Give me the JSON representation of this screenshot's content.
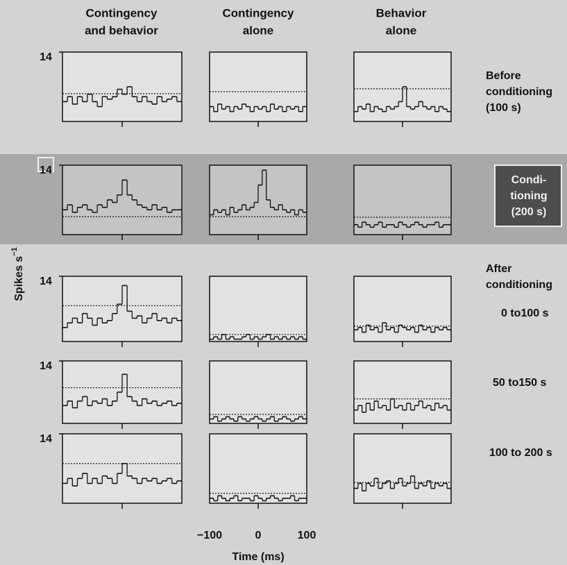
{
  "chart_data": {
    "type": "histogram-grid",
    "columns": [
      [
        "Contingency",
        "and behavior"
      ],
      [
        "Contingency",
        "alone"
      ],
      [
        "Behavior",
        "alone"
      ]
    ],
    "y_label": "Spikes s",
    "y_label_exponent": "−1",
    "x_label": "Time (ms)",
    "xlim": [
      -100,
      100
    ],
    "xticks": [
      {
        "value": -100,
        "label": "−100"
      },
      0,
      100
    ],
    "ylim": [
      0,
      14
    ],
    "yticks": [
      14
    ],
    "after_label": [
      "After",
      "conditioning"
    ],
    "rows": [
      {
        "label": [
          "Before",
          "conditioning",
          "(100 s)"
        ],
        "panels": [
          {
            "threshold": 5.6,
            "values": [
              4,
              5,
              3.5,
              5,
              4,
              5.5,
              4,
              3,
              5,
              4.5,
              5,
              6.5,
              5.5,
              7,
              5,
              4,
              5,
              4,
              3.5,
              5,
              4,
              4.5,
              5,
              4
            ]
          },
          {
            "threshold": 6,
            "values": [
              3,
              2,
              3.5,
              2.5,
              3,
              2,
              3,
              2.5,
              3.5,
              3,
              2,
              3,
              2.5,
              3,
              2,
              3.5,
              2.5,
              3,
              2,
              3,
              2.5,
              3,
              2,
              3
            ]
          },
          {
            "threshold": 6.6,
            "values": [
              2,
              3,
              2.5,
              3.5,
              2,
              3,
              2.5,
              2,
              3,
              2.5,
              3,
              4,
              7,
              3,
              2.5,
              3,
              4,
              3,
              2.5,
              3,
              2,
              3,
              2.5,
              2
            ]
          }
        ]
      },
      {
        "label": [
          "Condi-",
          "tioning",
          "(200 s)"
        ],
        "panels": [
          {
            "threshold": 3.6,
            "values": [
              5,
              6,
              4.5,
              5.5,
              6,
              5,
              4.5,
              6,
              5.5,
              7,
              6.5,
              8,
              11,
              8,
              7,
              6,
              5.5,
              5,
              6,
              5,
              5.5,
              4.5,
              5,
              5
            ]
          },
          {
            "threshold": 3.6,
            "values": [
              4,
              5,
              4.5,
              5,
              4,
              5.5,
              4.5,
              5,
              6,
              5,
              5.5,
              6.5,
              10,
              13,
              7,
              5.5,
              5,
              6,
              5,
              4.5,
              5,
              4,
              5,
              4.5
            ]
          },
          {
            "threshold": 3.5,
            "values": [
              2,
              1.5,
              2.5,
              2,
              1.5,
              2,
              2.5,
              1.5,
              2,
              2,
              1.5,
              2.5,
              2,
              1.5,
              2,
              2.5,
              2,
              1.5,
              2,
              2,
              2.5,
              1.5,
              2,
              2
            ]
          }
        ]
      },
      {
        "label": [
          "0 to100 s"
        ],
        "panels": [
          {
            "threshold": 7.7,
            "values": [
              3,
              4,
              5,
              4,
              6,
              5,
              3.5,
              5,
              4,
              4.5,
              6,
              8,
              12,
              6.5,
              5,
              5.5,
              4,
              5,
              6,
              4.5,
              5,
              4,
              5,
              4.5
            ]
          },
          {
            "threshold": 1.5,
            "values": [
              0.5,
              1,
              0.5,
              1.5,
              0.5,
              1,
              0.5,
              0.5,
              1,
              1.5,
              0.5,
              1,
              0.5,
              1,
              1.5,
              0.5,
              1,
              0.5,
              1,
              0.5,
              1,
              0.5,
              1,
              0.5
            ]
          },
          {
            "threshold": 3.3,
            "values": [
              2.5,
              3,
              2,
              3.5,
              2.5,
              3,
              2,
              4,
              2.5,
              3,
              2,
              3.5,
              3,
              2.5,
              3,
              2,
              3.5,
              2.5,
              3,
              2,
              3,
              2.5,
              3,
              2.5
            ]
          }
        ]
      },
      {
        "label": [
          "50 to150 s"
        ],
        "panels": [
          {
            "threshold": 8,
            "values": [
              4,
              5,
              3.5,
              5,
              6,
              4,
              5,
              4.5,
              5.5,
              4,
              5,
              7,
              11,
              6,
              5,
              4,
              5.5,
              4.5,
              5,
              4,
              4.5,
              5,
              4,
              4.5
            ]
          },
          {
            "threshold": 2,
            "values": [
              1,
              1.5,
              0.5,
              1,
              1.5,
              1,
              0.5,
              1.5,
              1,
              0.5,
              1,
              1.5,
              1,
              0.5,
              1,
              1.5,
              0.5,
              1,
              1.5,
              1,
              0.5,
              1,
              1.5,
              1
            ]
          },
          {
            "threshold": 5.5,
            "values": [
              3,
              4,
              2.5,
              4.5,
              3,
              5,
              3.5,
              4,
              3,
              5.5,
              3.5,
              4,
              3,
              4.5,
              3,
              4,
              5,
              3.5,
              4,
              3,
              4.5,
              3.5,
              4,
              3
            ]
          }
        ]
      },
      {
        "label": [
          "100 to 200 s"
        ],
        "panels": [
          {
            "threshold": 8,
            "values": [
              4,
              5,
              3.5,
              5,
              6,
              4,
              5,
              4,
              5.5,
              5,
              4,
              6,
              8,
              5.5,
              5,
              4,
              5,
              4.5,
              5,
              4,
              4.5,
              5,
              4,
              4.5
            ]
          },
          {
            "threshold": 2,
            "values": [
              1,
              0.5,
              1.5,
              1,
              0.5,
              1,
              1.5,
              0.5,
              1,
              1,
              0.5,
              1.5,
              1,
              0.5,
              1,
              1.5,
              1,
              0.5,
              1,
              1,
              1.5,
              0.5,
              1,
              1
            ]
          },
          {
            "threshold": 4.2,
            "values": [
              3,
              4,
              2.5,
              4,
              3.5,
              5,
              3,
              4,
              4.5,
              3,
              4,
              5,
              3.5,
              4,
              5.5,
              3,
              4,
              3.5,
              4.5,
              3,
              4,
              3.5,
              4,
              3
            ]
          }
        ]
      }
    ]
  }
}
